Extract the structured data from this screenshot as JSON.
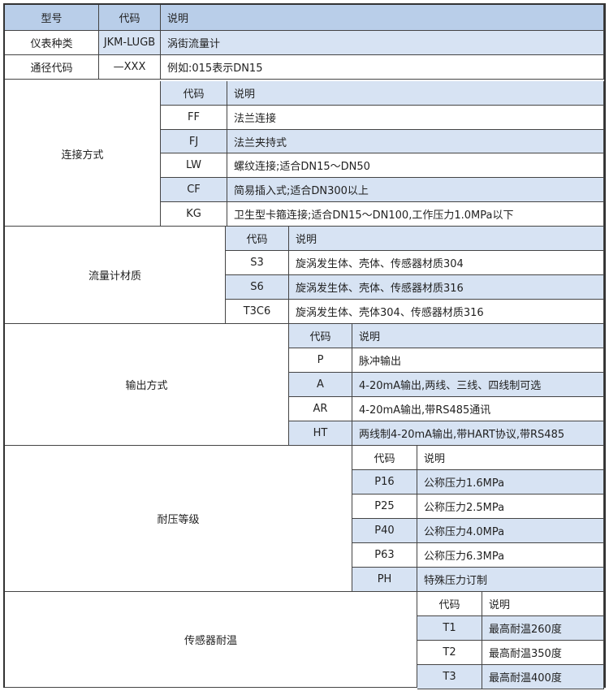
{
  "colors": {
    "header": "#b9cee9",
    "row_highlight": "#d7e3f3",
    "border": "#444444"
  },
  "top": {
    "header": [
      "型号",
      "代码",
      "说明"
    ],
    "rows": [
      [
        "仪表种类",
        "JKM-LUGB",
        "涡街流量计"
      ],
      [
        "通径代码",
        "—XXX",
        "例如:015表示DN15"
      ]
    ]
  },
  "sections": [
    {
      "label": "连接方式",
      "code_header": "代码",
      "desc_header": "说明",
      "rows": [
        [
          "FF",
          "法兰连接"
        ],
        [
          "FJ",
          "法兰夹持式"
        ],
        [
          "LW",
          "螺纹连接;适合DN15～DN50"
        ],
        [
          "CF",
          "简易插入式;适合DN300以上"
        ],
        [
          "KG",
          "卫生型卡箍连接;适合DN15～DN100,工作压力1.0MPa以下"
        ]
      ]
    },
    {
      "label": "流量计材质",
      "code_header": "代码",
      "desc_header": "说明",
      "rows": [
        [
          "S3",
          "旋涡发生体、壳体、传感器材质304"
        ],
        [
          "S6",
          "旋涡发生体、壳体、传感器材质316"
        ],
        [
          "T3C6",
          "旋涡发生体、壳体304、传感器材质316"
        ]
      ]
    },
    {
      "label": "输出方式",
      "code_header": "代码",
      "desc_header": "说明",
      "rows": [
        [
          "P",
          "脉冲输出"
        ],
        [
          "A",
          "4-20mA输出,两线、三线、四线制可选"
        ],
        [
          "AR",
          "4-20mA输出,带RS485通讯"
        ],
        [
          "HT",
          "两线制4-20mA输出,带HART协议,带RS485"
        ]
      ]
    },
    {
      "label": "耐压等级",
      "code_header": "代码",
      "desc_header": "说明",
      "rows": [
        [
          "P16",
          "公称压力1.6MPa"
        ],
        [
          "P25",
          "公称压力2.5MPa"
        ],
        [
          "P40",
          "公称压力4.0MPa"
        ],
        [
          "P63",
          "公称压力6.3MPa"
        ],
        [
          "PH",
          "特殊压力订制"
        ]
      ]
    },
    {
      "label": "传感器耐温",
      "code_header": "代码",
      "desc_header": "说明",
      "rows": [
        [
          "T1",
          "最高耐温260度"
        ],
        [
          "T2",
          "最高耐温350度"
        ],
        [
          "T3",
          "最高耐温400度"
        ]
      ]
    }
  ]
}
